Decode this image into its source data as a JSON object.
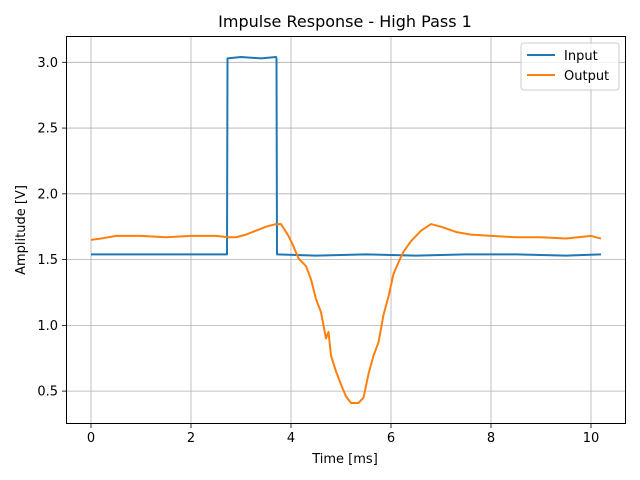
{
  "chart_data": {
    "type": "line",
    "title": "Impulse Response - High Pass 1",
    "xlabel": "Time [ms]",
    "ylabel": "Amplitude [V]",
    "xlim": [
      -0.5,
      10.7
    ],
    "ylim": [
      0.25,
      3.2
    ],
    "xticks": [
      0,
      2,
      4,
      6,
      8,
      10
    ],
    "yticks": [
      0.5,
      1.0,
      1.5,
      2.0,
      2.5,
      3.0
    ],
    "xtick_labels": [
      "0",
      "2",
      "4",
      "6",
      "8",
      "10"
    ],
    "ytick_labels": [
      "0.5",
      "1.0",
      "1.5",
      "2.0",
      "2.5",
      "3.0"
    ],
    "grid": true,
    "legend_position": "top-right",
    "series": [
      {
        "name": "Input",
        "color": "#1f77b4",
        "x": [
          0.0,
          2.7,
          2.72,
          2.73,
          3.0,
          3.4,
          3.7,
          3.71,
          3.72,
          4.5,
          5.5,
          6.5,
          7.5,
          8.5,
          9.5,
          10.2
        ],
        "y": [
          1.54,
          1.54,
          1.54,
          3.03,
          3.04,
          3.03,
          3.04,
          3.03,
          1.54,
          1.53,
          1.54,
          1.53,
          1.54,
          1.54,
          1.53,
          1.54
        ]
      },
      {
        "name": "Output",
        "color": "#ff7f0e",
        "x": [
          0.0,
          0.2,
          0.5,
          1.0,
          1.5,
          2.0,
          2.5,
          2.75,
          2.9,
          3.1,
          3.3,
          3.5,
          3.7,
          3.8,
          3.95,
          4.05,
          4.15,
          4.3,
          4.4,
          4.5,
          4.6,
          4.7,
          4.75,
          4.8,
          4.9,
          5.0,
          5.1,
          5.2,
          5.35,
          5.45,
          5.55,
          5.65,
          5.75,
          5.85,
          5.95,
          6.05,
          6.15,
          6.25,
          6.4,
          6.6,
          6.8,
          7.0,
          7.3,
          7.6,
          8.0,
          8.5,
          9.0,
          9.5,
          10.0,
          10.2
        ],
        "y": [
          1.65,
          1.66,
          1.68,
          1.68,
          1.67,
          1.68,
          1.68,
          1.67,
          1.67,
          1.69,
          1.72,
          1.75,
          1.77,
          1.77,
          1.68,
          1.6,
          1.51,
          1.45,
          1.35,
          1.2,
          1.1,
          0.9,
          0.95,
          0.77,
          0.65,
          0.55,
          0.46,
          0.41,
          0.41,
          0.45,
          0.63,
          0.77,
          0.87,
          1.08,
          1.22,
          1.39,
          1.48,
          1.56,
          1.64,
          1.72,
          1.77,
          1.75,
          1.71,
          1.69,
          1.68,
          1.67,
          1.67,
          1.66,
          1.68,
          1.66
        ]
      }
    ]
  }
}
